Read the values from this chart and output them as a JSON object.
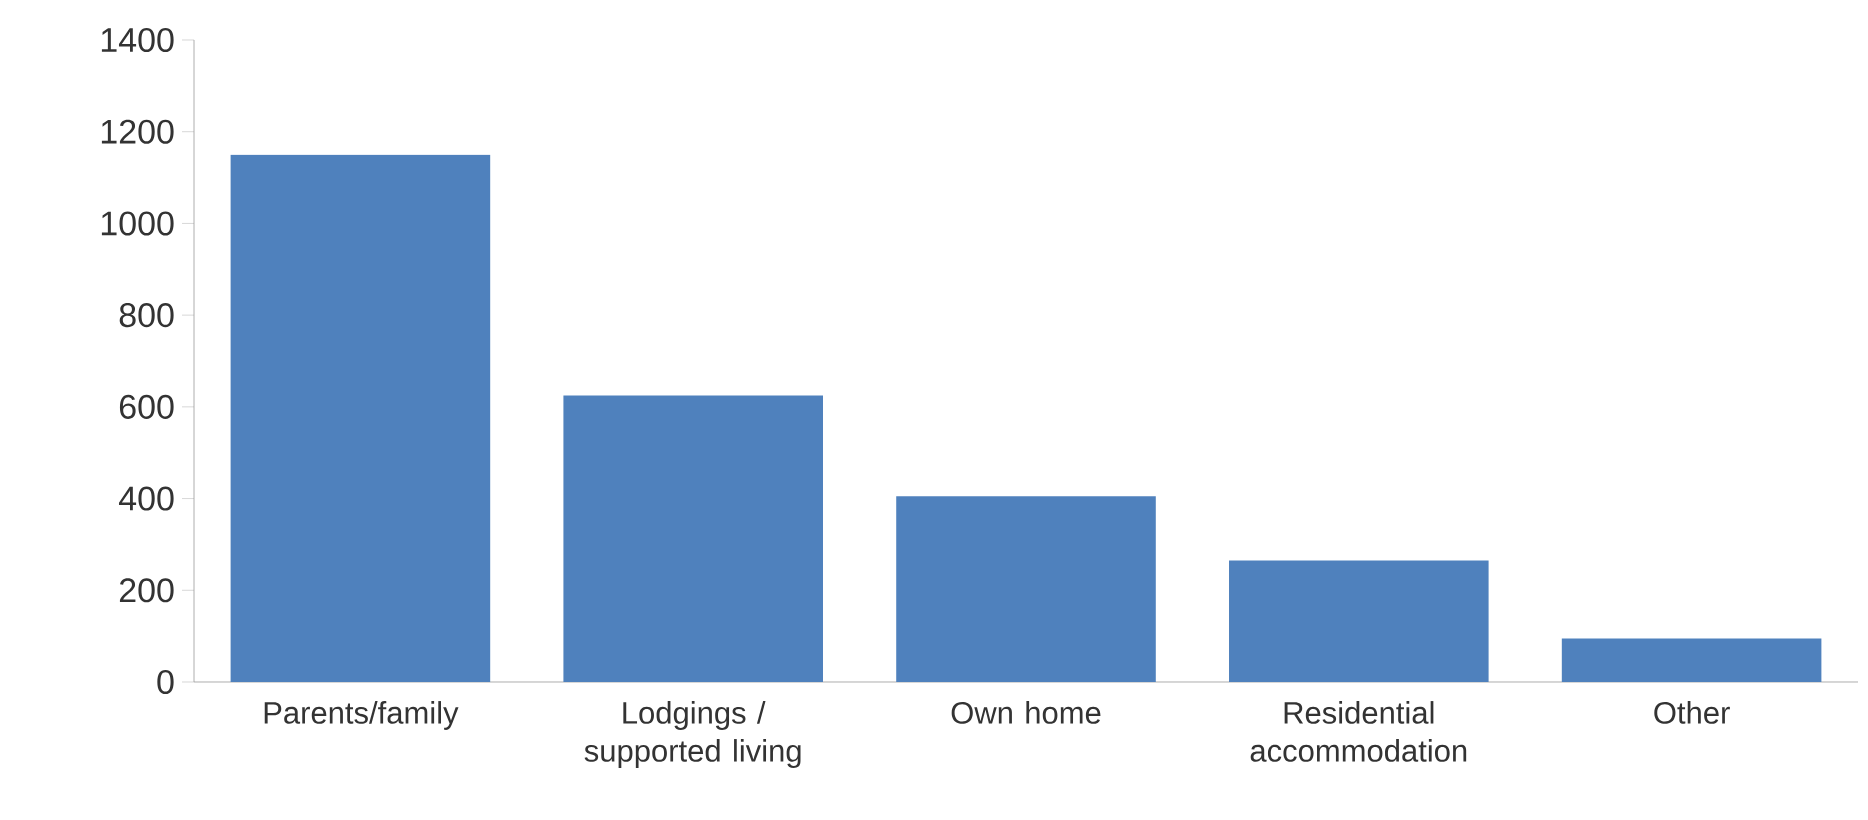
{
  "chart_data": {
    "type": "bar",
    "categories": [
      "Parents/family",
      "Lodgings / supported living",
      "Own home",
      "Residential accommodation",
      "Other"
    ],
    "values": [
      1150,
      625,
      405,
      265,
      95
    ],
    "color": "#4f81bd",
    "ylim": [
      0,
      1400
    ],
    "yticks": [
      0,
      200,
      400,
      600,
      800,
      1000,
      1200,
      1400
    ],
    "grid": false
  }
}
